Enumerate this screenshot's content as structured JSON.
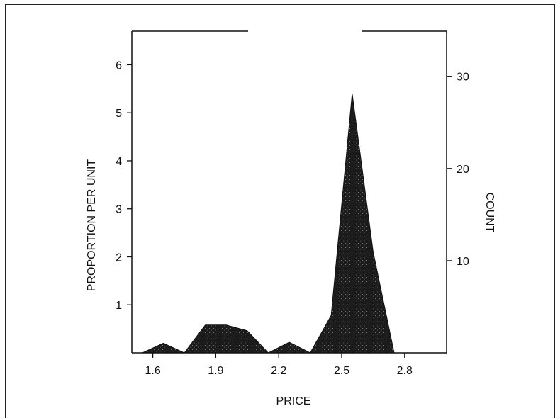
{
  "chart_data": {
    "type": "area",
    "title": "",
    "xlabel": "PRICE",
    "ylabel": "PROPORTION PER UNIT",
    "y2label": "COUNT",
    "xlim": [
      1.5,
      3.0
    ],
    "ylim": [
      0,
      6.7
    ],
    "y2lim": [
      0,
      34.9
    ],
    "xticks": [
      1.6,
      1.9,
      2.2,
      2.5,
      2.8
    ],
    "xtick_labels": [
      "1.6",
      "1.9",
      "2.2",
      "2.5",
      "2.8"
    ],
    "yticks": [
      1,
      2,
      3,
      4,
      5,
      6
    ],
    "ytick_labels": [
      "1",
      "2",
      "3",
      "4",
      "5",
      "6"
    ],
    "y2ticks": [
      10,
      20,
      30
    ],
    "y2tick_labels": [
      "10",
      "20",
      "30"
    ],
    "grid": false,
    "fill_color": "#1c1c1c",
    "series": [
      {
        "x": [
          1.55,
          1.65,
          1.75,
          1.85,
          1.95,
          2.05,
          2.15,
          2.25,
          2.35,
          2.45,
          2.55,
          2.65,
          2.75
        ],
        "y": [
          0.0,
          0.2,
          0.0,
          0.58,
          0.58,
          0.46,
          0.0,
          0.22,
          0.0,
          0.78,
          5.4,
          2.1,
          0.0
        ]
      }
    ]
  }
}
